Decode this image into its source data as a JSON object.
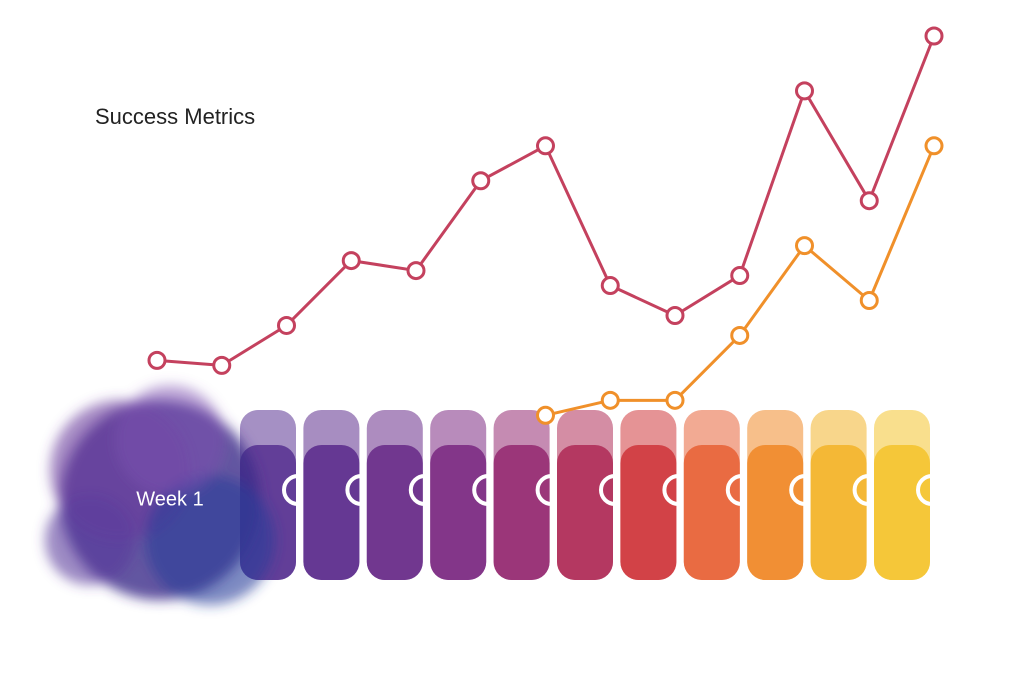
{
  "chart_data": {
    "type": "line",
    "title": "Success Metrics",
    "categories": [
      "Week 1",
      null,
      null,
      null,
      null,
      null,
      null,
      null,
      null,
      null,
      null,
      null,
      null
    ],
    "series": [
      {
        "color": "#c4415e",
        "values": [
          44,
          43,
          51,
          64,
          62,
          80,
          87,
          59,
          53,
          61,
          98,
          76,
          109
        ]
      },
      {
        "color": "#f0902a",
        "values": [
          null,
          null,
          null,
          null,
          null,
          null,
          33,
          36,
          36,
          49,
          67,
          56,
          87
        ]
      }
    ]
  }
}
